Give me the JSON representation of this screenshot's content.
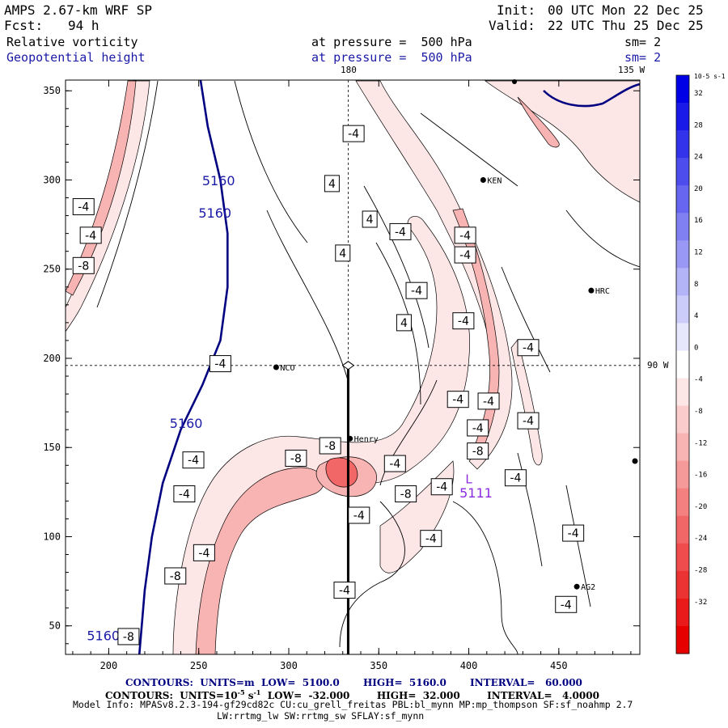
{
  "header": {
    "model_line": "AMPS 2.67-km WRF SP",
    "fcst_label": "Fcst:",
    "fcst_value": "94 h",
    "init_label": "Init:",
    "init_value": "00 UTC Mon 22 Dec 25",
    "valid_label": "Valid:",
    "valid_value": "22 UTC Thu 25 Dec 25",
    "field1_name": "Relative vorticity",
    "field1_level": "at pressure =  500 hPa",
    "field1_sm": "sm= 2",
    "field2_name": "Geopotential height",
    "field2_level": "at pressure =  500 hPa",
    "field2_sm": "sm= 2"
  },
  "map_labels": {
    "lon_180": "180",
    "lon_135w": "135 W",
    "lon_90w": "90 W"
  },
  "stations": [
    {
      "name": "NCO",
      "x": 293,
      "y": 195
    },
    {
      "name": "Henry",
      "x": 334,
      "y": 155
    },
    {
      "name": "KEN",
      "x": 408,
      "y": 300
    },
    {
      "name": "HRC",
      "x": 468,
      "y": 238
    },
    {
      "name": "AG2",
      "x": 460,
      "y": 72
    }
  ],
  "footer": {
    "contours1": "CONTOURS:  UNITS=m  LOW=  5100.0       HIGH=  5160.0       INTERVAL=   60.000",
    "contours2_prefix": "CONTOURS:  UNITS=10",
    "contours2_exp": "-5",
    "contours2_unit": " s",
    "contours2_exp2": "-1",
    "contours2_rest": "  LOW=  -32.000        HIGH=  32.000        INTERVAL=   4.0000",
    "model_info": "Model Info: MPASv8.2.3-194-gf29cd82c CU:cu_grell_freitas PBL:bl_mynn MP:mp_thompson SF:sf_noahmp 2.7",
    "model_info2": "LW:rrtmg_lw SW:rrtmg_sw SFLAY:sf_mynn"
  },
  "chart_data": {
    "type": "heatmap",
    "title": "Relative vorticity / Geopotential height at 500 hPa",
    "xlim": [
      176,
      495
    ],
    "ylim": [
      34,
      356
    ],
    "xticks": [
      200,
      250,
      300,
      350,
      400,
      450
    ],
    "yticks": [
      50,
      100,
      150,
      200,
      250,
      300,
      350
    ],
    "cross_x": 333,
    "cross_y": 196,
    "section_line": {
      "x": 333,
      "y_from": 34,
      "y_to": 196
    },
    "height_contour_value": 5160,
    "height_contour": [
      [
        251,
        356
      ],
      [
        255,
        330
      ],
      [
        262,
        300
      ],
      [
        266,
        270
      ],
      [
        266,
        240
      ],
      [
        262,
        210
      ],
      [
        252,
        185
      ],
      [
        240,
        160
      ],
      [
        230,
        130
      ],
      [
        224,
        100
      ],
      [
        220,
        70
      ],
      [
        217,
        34
      ]
    ],
    "height_labels": [
      {
        "text": "5160",
        "x": 261,
        "y": 297
      },
      {
        "text": "5160",
        "x": 259,
        "y": 279
      },
      {
        "text": "5160",
        "x": 243,
        "y": 161
      },
      {
        "text": "5160",
        "x": 197,
        "y": 42
      },
      {
        "text": "5111",
        "x": 404,
        "y": 122
      }
    ],
    "low_marker": {
      "text": "L",
      "x": 400,
      "y": 130
    },
    "vorticity_labels": [
      {
        "text": "-4",
        "x": 186,
        "y": 285
      },
      {
        "text": "-4",
        "x": 190,
        "y": 269
      },
      {
        "text": "-8",
        "x": 186,
        "y": 252
      },
      {
        "text": "-4",
        "x": 336,
        "y": 326
      },
      {
        "text": "4",
        "x": 324,
        "y": 298
      },
      {
        "text": "4",
        "x": 345,
        "y": 278
      },
      {
        "text": "-4",
        "x": 362,
        "y": 271
      },
      {
        "text": "4",
        "x": 330,
        "y": 259
      },
      {
        "text": "-4",
        "x": 398,
        "y": 269
      },
      {
        "text": "-4",
        "x": 398,
        "y": 258
      },
      {
        "text": "-4",
        "x": 371,
        "y": 238
      },
      {
        "text": "4",
        "x": 364,
        "y": 220
      },
      {
        "text": "-4",
        "x": 397,
        "y": 221
      },
      {
        "text": "-4",
        "x": 433,
        "y": 206
      },
      {
        "text": "-4",
        "x": 262,
        "y": 197
      },
      {
        "text": "-4",
        "x": 394,
        "y": 177
      },
      {
        "text": "-4",
        "x": 411,
        "y": 176
      },
      {
        "text": "-4",
        "x": 433,
        "y": 165
      },
      {
        "text": "-4",
        "x": 405,
        "y": 161
      },
      {
        "text": "-8",
        "x": 405,
        "y": 148
      },
      {
        "text": "-8",
        "x": 323,
        "y": 151
      },
      {
        "text": "-8",
        "x": 304,
        "y": 144
      },
      {
        "text": "-4",
        "x": 247,
        "y": 143
      },
      {
        "text": "-4",
        "x": 359,
        "y": 141
      },
      {
        "text": "-4",
        "x": 426,
        "y": 133
      },
      {
        "text": "-4",
        "x": 385,
        "y": 128
      },
      {
        "text": "-8",
        "x": 365,
        "y": 124
      },
      {
        "text": "-4",
        "x": 242,
        "y": 124
      },
      {
        "text": "-4",
        "x": 339,
        "y": 112
      },
      {
        "text": "-4",
        "x": 379,
        "y": 99
      },
      {
        "text": "-4",
        "x": 458,
        "y": 102
      },
      {
        "text": "-4",
        "x": 253,
        "y": 91
      },
      {
        "text": "-8",
        "x": 237,
        "y": 78
      },
      {
        "text": "-4",
        "x": 331,
        "y": 70
      },
      {
        "text": "-4",
        "x": 454,
        "y": 62
      },
      {
        "text": "-8",
        "x": 211,
        "y": 44
      }
    ],
    "colorbar": {
      "label": "10-5 s-1",
      "ticks": [
        32,
        28,
        24,
        20,
        16,
        12,
        8,
        4,
        0,
        -4,
        -8,
        -12,
        -16,
        -20,
        -24,
        -28,
        -32
      ],
      "colors": [
        "#0000e6",
        "#1a1ae8",
        "#3333eb",
        "#4d4ded",
        "#6666f0",
        "#8080f2",
        "#9999f5",
        "#b3b3f8",
        "#ccccfa",
        "#e6e6fd",
        "#ffffff",
        "#fde6e6",
        "#fbcccc",
        "#f8b3b3",
        "#f69999",
        "#f48080",
        "#f16666",
        "#ef4d4d",
        "#ec3333",
        "#ea1a1a",
        "#e60000"
      ]
    }
  }
}
